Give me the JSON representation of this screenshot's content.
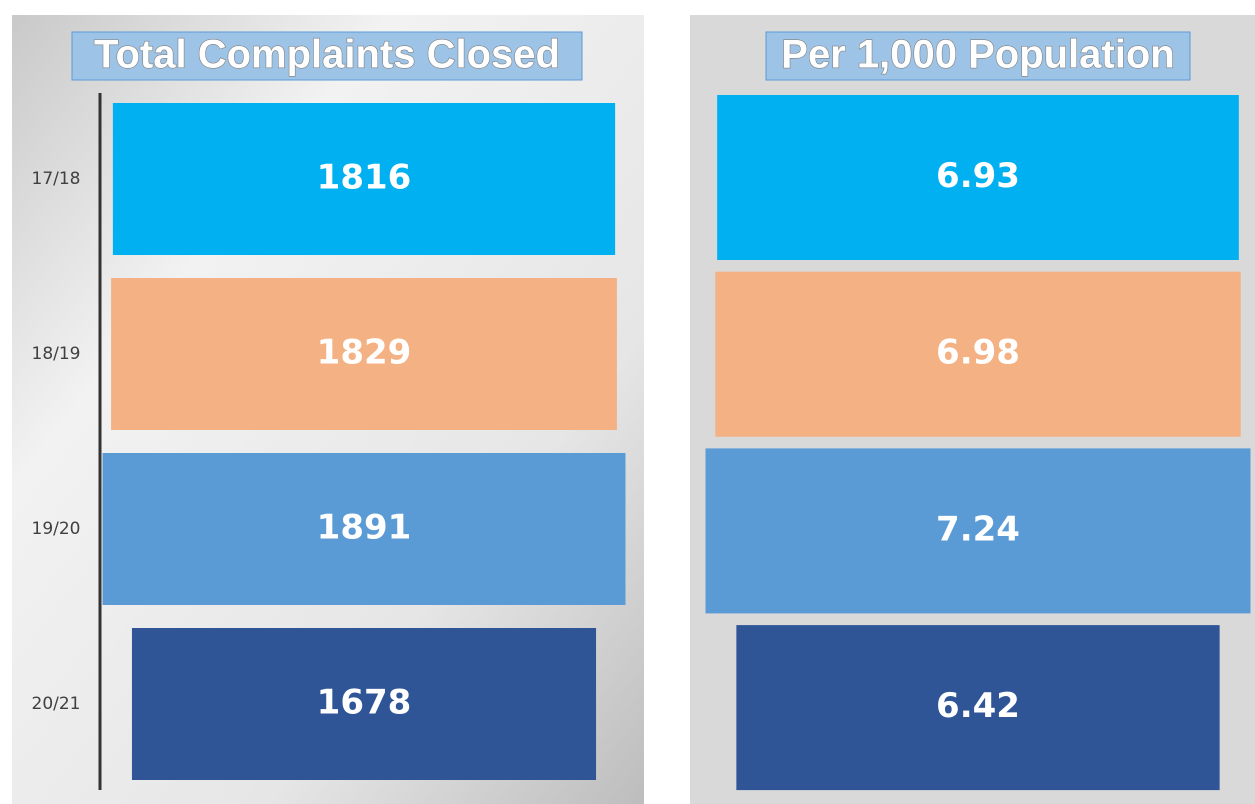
{
  "chart_data": [
    {
      "type": "bar",
      "title": "Total Complaints Closed",
      "categories": [
        "17/18",
        "18/19",
        "19/20",
        "20/21"
      ],
      "values": [
        1816,
        1829,
        1891,
        1678
      ],
      "colors": [
        "#00b0f0",
        "#f4b183",
        "#5b9bd5",
        "#2f5597"
      ]
    },
    {
      "type": "bar",
      "title": "Per 1,000 Population",
      "values": [
        6.93,
        6.98,
        7.24,
        6.42
      ],
      "colors": [
        "#00b0f0",
        "#f4b183",
        "#5b9bd5",
        "#2f5597"
      ]
    }
  ]
}
